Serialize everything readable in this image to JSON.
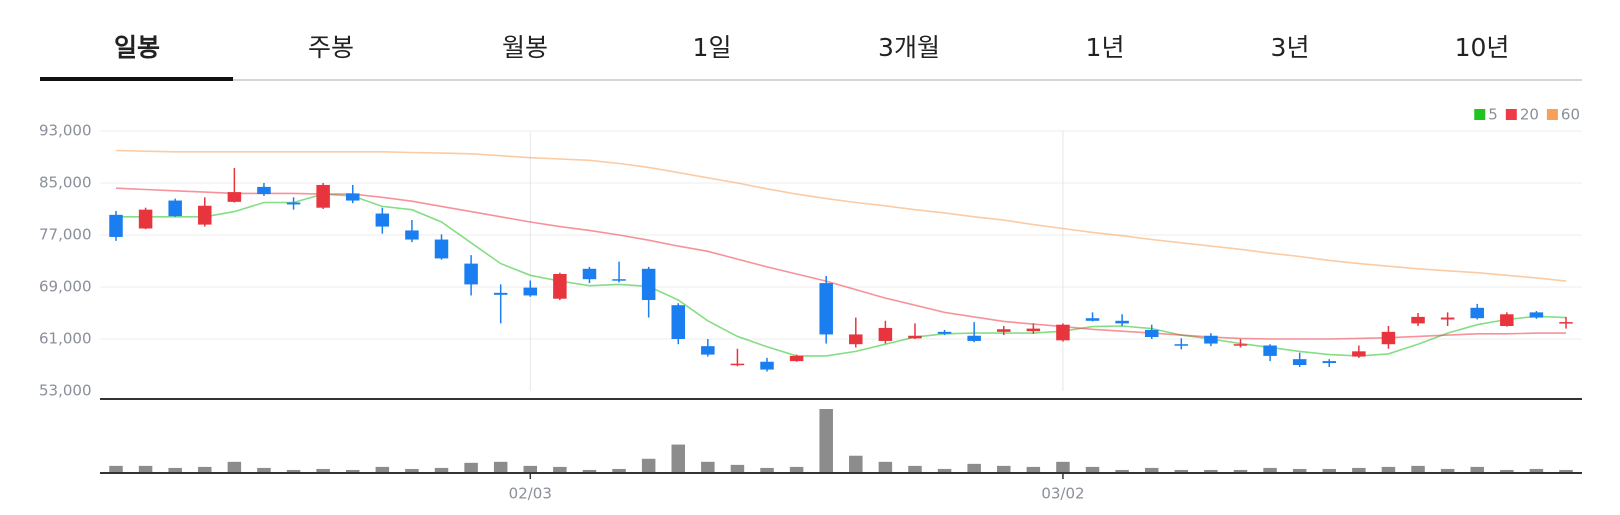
{
  "tabs": {
    "items": [
      "일봉",
      "주봉",
      "월봉",
      "1일",
      "3개월",
      "1년",
      "3년",
      "10년"
    ],
    "active": 0
  },
  "chart_data": {
    "type": "candlestick",
    "categories": [
      null,
      null,
      null,
      null,
      null,
      null,
      null,
      null,
      null,
      null,
      null,
      null,
      null,
      null,
      "02/03",
      null,
      null,
      null,
      null,
      null,
      null,
      null,
      null,
      null,
      null,
      null,
      null,
      null,
      null,
      null,
      null,
      null,
      "03/02",
      null,
      null,
      null,
      null,
      null,
      null,
      null,
      null,
      null,
      null,
      null,
      null,
      null,
      null,
      null,
      null,
      null
    ],
    "open": [
      80100,
      78000,
      82300,
      78600,
      82100,
      84400,
      82000,
      81200,
      83400,
      80300,
      77700,
      76300,
      72600,
      68100,
      68900,
      67200,
      71800,
      70200,
      71800,
      66200,
      59900,
      57000,
      57500,
      57600,
      69600,
      60200,
      60700,
      61100,
      62100,
      61500,
      62100,
      62200,
      60800,
      64200,
      63800,
      62400,
      60200,
      61500,
      60000,
      60000,
      57900,
      57600,
      58300,
      60200,
      63400,
      64000,
      65800,
      63000,
      65100,
      63400
    ],
    "high": [
      80700,
      81200,
      82600,
      82800,
      87300,
      85000,
      82800,
      85000,
      84700,
      81200,
      79300,
      77100,
      73900,
      69400,
      70000,
      71200,
      72100,
      72900,
      72100,
      66500,
      61000,
      59500,
      58100,
      58600,
      70700,
      64300,
      63800,
      63400,
      62400,
      63600,
      63000,
      63400,
      63400,
      65100,
      64800,
      63200,
      61100,
      61900,
      61000,
      60200,
      58900,
      57900,
      60000,
      63000,
      65000,
      65100,
      66400,
      65100,
      65300,
      64400
    ],
    "low": [
      76100,
      77900,
      79800,
      78300,
      82000,
      83000,
      80900,
      81000,
      81900,
      77200,
      75900,
      73200,
      67700,
      63400,
      67500,
      67000,
      69600,
      69700,
      64300,
      60200,
      58300,
      56800,
      56000,
      57500,
      60300,
      59700,
      60300,
      61000,
      61600,
      60500,
      61600,
      61800,
      60600,
      63700,
      63000,
      61000,
      59400,
      59900,
      59700,
      57600,
      56700,
      56700,
      58100,
      59500,
      63000,
      63000,
      64000,
      62900,
      64100,
      62600
    ],
    "close": [
      76700,
      80900,
      79900,
      81500,
      83600,
      83300,
      81700,
      84700,
      82300,
      78300,
      76300,
      73400,
      69400,
      67800,
      67700,
      71000,
      70200,
      70000,
      67000,
      61000,
      58600,
      57200,
      56300,
      58400,
      61700,
      61700,
      62700,
      61500,
      61800,
      60700,
      62500,
      62600,
      63200,
      63800,
      63400,
      61300,
      60000,
      60300,
      60200,
      58400,
      57000,
      57300,
      59100,
      62100,
      64400,
      64300,
      64200,
      64800,
      64300,
      63600
    ],
    "up_color": "#e8343c",
    "down_color": "#1a7ef0",
    "series": [
      {
        "name": "5",
        "color": "#20c320",
        "values": [
          79800,
          79800,
          79800,
          79800,
          80600,
          82000,
          82000,
          83300,
          83000,
          81400,
          80900,
          79000,
          75800,
          72600,
          70800,
          69900,
          69200,
          69400,
          69100,
          67000,
          63800,
          61400,
          59800,
          58400,
          58400,
          59100,
          60200,
          61300,
          61800,
          61900,
          61900,
          61900,
          62200,
          62900,
          63000,
          62600,
          61600,
          61000,
          60300,
          59700,
          59100,
          58600,
          58400,
          58700,
          60200,
          61900,
          63200,
          64000,
          64500,
          64300
        ]
      },
      {
        "name": "20",
        "color": "#ef3b47",
        "values": [
          84200,
          84000,
          83800,
          83600,
          83400,
          83400,
          83400,
          83300,
          83300,
          82800,
          82200,
          81400,
          80600,
          79800,
          79000,
          78300,
          77700,
          77000,
          76200,
          75300,
          74500,
          73300,
          72100,
          71000,
          69900,
          68600,
          67300,
          66200,
          65100,
          64400,
          63700,
          63300,
          62900,
          62500,
          62200,
          61900,
          61600,
          61300,
          61100,
          61000,
          61000,
          61000,
          61100,
          61200,
          61400,
          61600,
          61800,
          61800,
          61900,
          61900
        ]
      },
      {
        "name": "60",
        "color": "#f7a05a",
        "values": [
          90000,
          89900,
          89800,
          89800,
          89800,
          89800,
          89800,
          89800,
          89800,
          89800,
          89700,
          89600,
          89500,
          89200,
          88900,
          88700,
          88500,
          88000,
          87400,
          86600,
          85800,
          85000,
          84100,
          83300,
          82600,
          82000,
          81500,
          80900,
          80400,
          79800,
          79300,
          78600,
          78000,
          77400,
          76900,
          76300,
          75800,
          75300,
          74800,
          74200,
          73700,
          73100,
          72600,
          72200,
          71800,
          71500,
          71200,
          70800,
          70400,
          69900
        ]
      }
    ],
    "volume": [
      7,
      7,
      5,
      6,
      11,
      5,
      3,
      4,
      3,
      6,
      4,
      5,
      10,
      11,
      7,
      6,
      3,
      4,
      14,
      28,
      11,
      8,
      5,
      6,
      63,
      17,
      11,
      7,
      4,
      9,
      7,
      6,
      11,
      6,
      3,
      5,
      3,
      3,
      3,
      5,
      4,
      4,
      5,
      6,
      7,
      4,
      6,
      3,
      4,
      3
    ],
    "volume_color": "#8c8c8c",
    "ylim": [
      53000,
      93000
    ],
    "yticks": [
      {
        "value": 53000,
        "label": "53,000"
      },
      {
        "value": 61000,
        "label": "61,000"
      },
      {
        "value": 69000,
        "label": "69,000"
      },
      {
        "value": 77000,
        "label": "77,000"
      },
      {
        "value": 85000,
        "label": "85,000"
      },
      {
        "value": 93000,
        "label": "93,000"
      }
    ],
    "grid": true
  }
}
